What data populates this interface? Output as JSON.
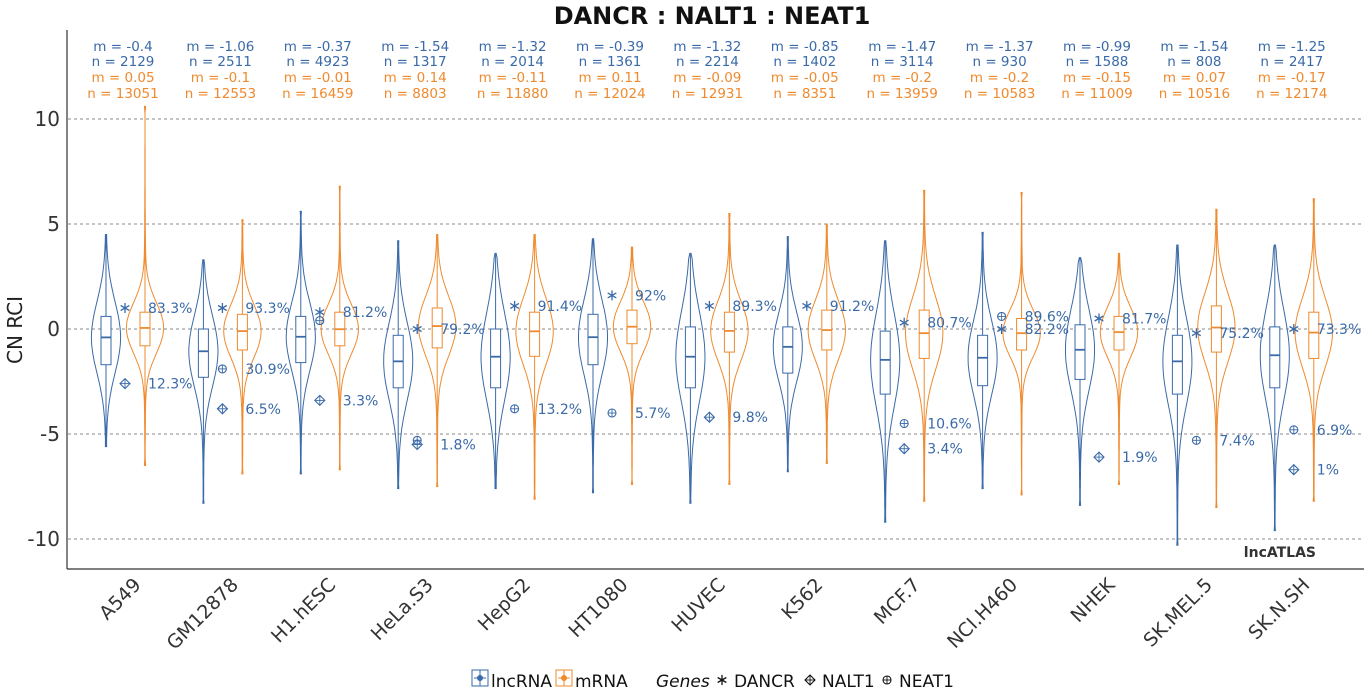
{
  "chart_data": {
    "type": "violin",
    "title": "DANCR : NALT1 : NEAT1",
    "ylabel": "CN RCI",
    "xlabel": "",
    "ylim": [
      -11,
      14
    ],
    "yticks": [
      10,
      5,
      0,
      -5,
      -10
    ],
    "ytick_labels": [
      "10",
      "5",
      "0",
      "-5",
      "-10"
    ],
    "grid": "horizontal-dashed",
    "watermark": "lncATLAS",
    "legend": {
      "placement": "bottom",
      "lncrna_label": "lncRNA",
      "mrna_label": "mRNA",
      "genes_title": "Genes",
      "genes": [
        "DANCR",
        "NALT1",
        "NEAT1"
      ]
    },
    "colors": {
      "lncrna": "#3a6aa8",
      "mrna": "#ef8a2e",
      "grid": "#888888"
    },
    "categories": [
      "A549",
      "GM12878",
      "H1.hESC",
      "HeLa.S3",
      "HepG2",
      "HT1080",
      "HUVEC",
      "K562",
      "MCF.7",
      "NCI.H460",
      "NHEK",
      "SK.MEL.5",
      "SK.N.SH"
    ],
    "lncrna": [
      {
        "m_label": "m = -0.4",
        "n_label": "n = 2129",
        "median": -0.4,
        "q1": -1.7,
        "q3": 0.6,
        "min": -5.6,
        "max": 4.5
      },
      {
        "m_label": "m = -1.06",
        "n_label": "n = 2511",
        "median": -1.06,
        "q1": -2.3,
        "q3": 0.0,
        "min": -8.3,
        "max": 3.3
      },
      {
        "m_label": "m = -0.37",
        "n_label": "n = 4923",
        "median": -0.37,
        "q1": -1.6,
        "q3": 0.6,
        "min": -6.9,
        "max": 5.6
      },
      {
        "m_label": "m = -1.54",
        "n_label": "n = 1317",
        "median": -1.54,
        "q1": -2.8,
        "q3": -0.3,
        "min": -7.6,
        "max": 4.2
      },
      {
        "m_label": "m = -1.32",
        "n_label": "n = 2014",
        "median": -1.32,
        "q1": -2.8,
        "q3": 0.0,
        "min": -7.6,
        "max": 3.6
      },
      {
        "m_label": "m = -0.39",
        "n_label": "n = 1361",
        "median": -0.39,
        "q1": -1.7,
        "q3": 0.7,
        "min": -7.8,
        "max": 4.3
      },
      {
        "m_label": "m = -1.32",
        "n_label": "n = 2214",
        "median": -1.32,
        "q1": -2.8,
        "q3": 0.1,
        "min": -8.3,
        "max": 3.6
      },
      {
        "m_label": "m = -0.85",
        "n_label": "n = 1402",
        "median": -0.85,
        "q1": -2.1,
        "q3": 0.1,
        "min": -6.8,
        "max": 4.4
      },
      {
        "m_label": "m = -1.47",
        "n_label": "n = 3114",
        "median": -1.47,
        "q1": -3.1,
        "q3": -0.1,
        "min": -9.2,
        "max": 4.2
      },
      {
        "m_label": "m = -1.37",
        "n_label": "n = 930",
        "median": -1.37,
        "q1": -2.7,
        "q3": -0.3,
        "min": -7.6,
        "max": 4.6
      },
      {
        "m_label": "m = -0.99",
        "n_label": "n = 1588",
        "median": -0.99,
        "q1": -2.4,
        "q3": 0.2,
        "min": -8.4,
        "max": 3.4
      },
      {
        "m_label": "m = -1.54",
        "n_label": "n = 808",
        "median": -1.54,
        "q1": -3.1,
        "q3": -0.3,
        "min": -10.3,
        "max": 4.0
      },
      {
        "m_label": "m = -1.25",
        "n_label": "n = 2417",
        "median": -1.25,
        "q1": -2.8,
        "q3": 0.1,
        "min": -9.6,
        "max": 4.0
      }
    ],
    "mrna": [
      {
        "m_label": "m = 0.05",
        "n_label": "n = 13051",
        "median": 0.05,
        "q1": -0.8,
        "q3": 0.8,
        "min": -6.5,
        "max": 10.6
      },
      {
        "m_label": "m = -0.1",
        "n_label": "n = 12553",
        "median": -0.1,
        "q1": -1.0,
        "q3": 0.7,
        "min": -6.9,
        "max": 5.2
      },
      {
        "m_label": "m = -0.01",
        "n_label": "n = 16459",
        "median": -0.01,
        "q1": -0.8,
        "q3": 0.8,
        "min": -6.7,
        "max": 6.8
      },
      {
        "m_label": "m = 0.14",
        "n_label": "n = 8803",
        "median": 0.14,
        "q1": -0.9,
        "q3": 1.0,
        "min": -7.5,
        "max": 4.5
      },
      {
        "m_label": "m = -0.11",
        "n_label": "n = 11880",
        "median": -0.11,
        "q1": -1.3,
        "q3": 0.8,
        "min": -8.1,
        "max": 4.5
      },
      {
        "m_label": "m = 0.11",
        "n_label": "n = 12024",
        "median": 0.11,
        "q1": -0.7,
        "q3": 0.9,
        "min": -7.4,
        "max": 3.9
      },
      {
        "m_label": "m = -0.09",
        "n_label": "n = 12931",
        "median": -0.09,
        "q1": -1.1,
        "q3": 0.8,
        "min": -7.4,
        "max": 5.5
      },
      {
        "m_label": "m = -0.05",
        "n_label": "n = 8351",
        "median": -0.05,
        "q1": -1.0,
        "q3": 0.9,
        "min": -6.4,
        "max": 5.0
      },
      {
        "m_label": "m = -0.2",
        "n_label": "n = 13959",
        "median": -0.2,
        "q1": -1.4,
        "q3": 0.9,
        "min": -8.2,
        "max": 6.6
      },
      {
        "m_label": "m = -0.2",
        "n_label": "n = 10583",
        "median": -0.2,
        "q1": -1.0,
        "q3": 0.5,
        "min": -7.9,
        "max": 6.5
      },
      {
        "m_label": "m = -0.15",
        "n_label": "n = 11009",
        "median": -0.15,
        "q1": -1.0,
        "q3": 0.6,
        "min": -7.4,
        "max": 3.6
      },
      {
        "m_label": "m = 0.07",
        "n_label": "n = 10516",
        "median": 0.07,
        "q1": -1.1,
        "q3": 1.1,
        "min": -8.5,
        "max": 5.7
      },
      {
        "m_label": "m = -0.17",
        "n_label": "n = 12174",
        "median": -0.17,
        "q1": -1.4,
        "q3": 0.8,
        "min": -8.2,
        "max": 6.2
      }
    ],
    "genes": [
      {
        "cell": "A549",
        "points": [
          {
            "gene": "DANCR",
            "y": 1.0,
            "label": "83.3%"
          },
          {
            "gene": "NALT1",
            "y": -2.6,
            "label": "12.3%"
          }
        ]
      },
      {
        "cell": "GM12878",
        "points": [
          {
            "gene": "DANCR",
            "y": 1.0,
            "label": "93.3%"
          },
          {
            "gene": "NEAT1",
            "y": -1.9,
            "label": "30.9%"
          },
          {
            "gene": "NALT1",
            "y": -3.8,
            "label": "6.5%"
          }
        ]
      },
      {
        "cell": "H1.hESC",
        "points": [
          {
            "gene": "DANCR",
            "y": 0.8,
            "label": "81.2%"
          },
          {
            "gene": "NEAT1",
            "y": 0.4,
            "label": ""
          },
          {
            "gene": "NALT1",
            "y": -3.4,
            "label": "3.3%"
          }
        ]
      },
      {
        "cell": "HeLa.S3",
        "points": [
          {
            "gene": "DANCR",
            "y": 0.0,
            "label": "79.2%"
          },
          {
            "gene": "NEAT1",
            "y": -5.3,
            "label": ""
          },
          {
            "gene": "NALT1",
            "y": -5.5,
            "label": "1.8%"
          }
        ]
      },
      {
        "cell": "HepG2",
        "points": [
          {
            "gene": "DANCR",
            "y": 1.1,
            "label": "91.4%"
          },
          {
            "gene": "NEAT1",
            "y": -3.8,
            "label": "13.2%"
          }
        ]
      },
      {
        "cell": "HT1080",
        "points": [
          {
            "gene": "DANCR",
            "y": 1.6,
            "label": "92%"
          },
          {
            "gene": "NEAT1",
            "y": -4.0,
            "label": "5.7%"
          }
        ]
      },
      {
        "cell": "HUVEC",
        "points": [
          {
            "gene": "DANCR",
            "y": 1.1,
            "label": "89.3%"
          },
          {
            "gene": "NALT1",
            "y": -4.2,
            "label": "9.8%"
          }
        ]
      },
      {
        "cell": "K562",
        "points": [
          {
            "gene": "DANCR",
            "y": 1.1,
            "label": "91.2%"
          }
        ]
      },
      {
        "cell": "MCF.7",
        "points": [
          {
            "gene": "DANCR",
            "y": 0.3,
            "label": "80.7%"
          },
          {
            "gene": "NEAT1",
            "y": -4.5,
            "label": "10.6%"
          },
          {
            "gene": "NALT1",
            "y": -5.7,
            "label": "3.4%"
          }
        ]
      },
      {
        "cell": "NCI.H460",
        "points": [
          {
            "gene": "NEAT1",
            "y": 0.6,
            "label": "89.6%"
          },
          {
            "gene": "DANCR",
            "y": 0.0,
            "label": "82.2%"
          }
        ]
      },
      {
        "cell": "NHEK",
        "points": [
          {
            "gene": "DANCR",
            "y": 0.5,
            "label": "81.7%"
          },
          {
            "gene": "NALT1",
            "y": -6.1,
            "label": "1.9%"
          }
        ]
      },
      {
        "cell": "SK.MEL.5",
        "points": [
          {
            "gene": "DANCR",
            "y": -0.2,
            "label": "75.2%"
          },
          {
            "gene": "NEAT1",
            "y": -5.3,
            "label": "7.4%"
          }
        ]
      },
      {
        "cell": "SK.N.SH",
        "points": [
          {
            "gene": "DANCR",
            "y": 0.0,
            "label": "73.3%"
          },
          {
            "gene": "NEAT1",
            "y": -4.8,
            "label": "6.9%"
          },
          {
            "gene": "NALT1",
            "y": -6.7,
            "label": "1%"
          }
        ]
      }
    ]
  }
}
